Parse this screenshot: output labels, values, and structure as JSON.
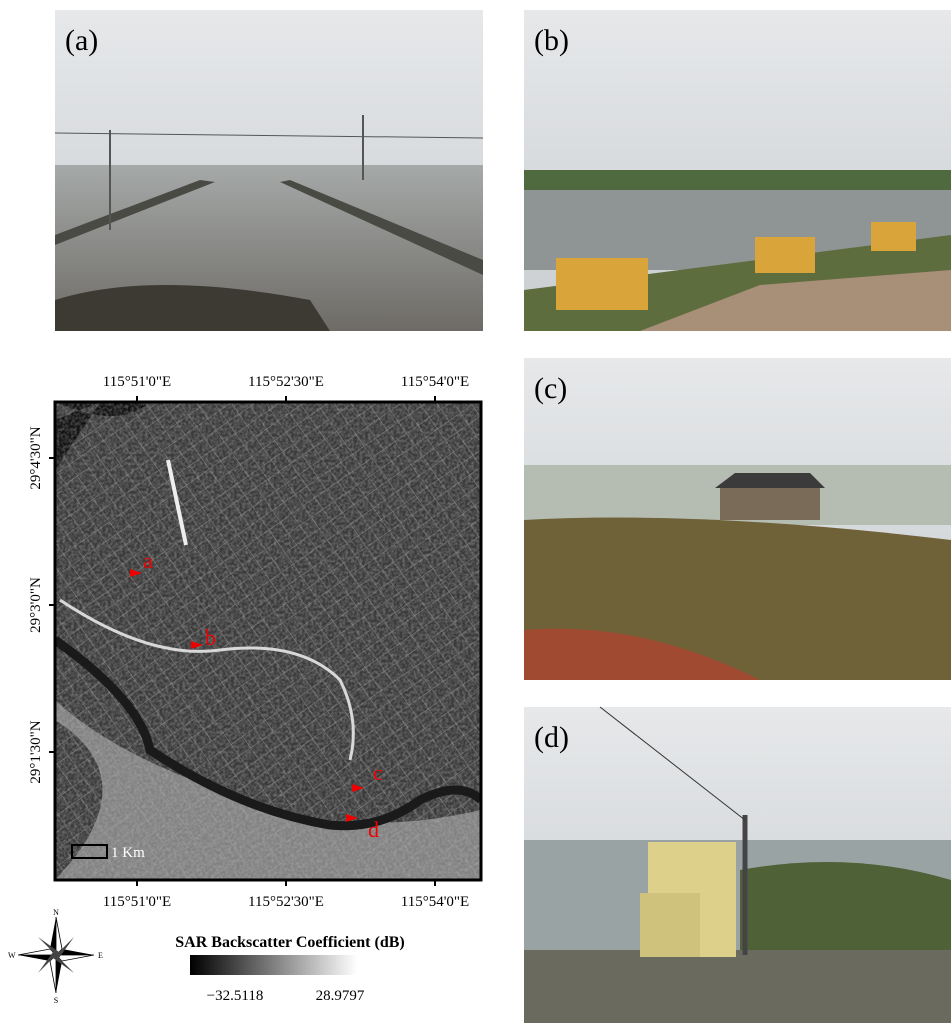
{
  "panels": {
    "a": "(a)",
    "b": "(b)",
    "c": "(c)",
    "d": "(d)"
  },
  "map": {
    "top_ticks": [
      "115°51'0\"E",
      "115°52'30\"E",
      "115°54'0\"E"
    ],
    "bottom_ticks": [
      "115°51'0\"E",
      "115°52'30\"E",
      "115°54'0\"E"
    ],
    "left_ticks": [
      "29°4'30\"N",
      "29°3'0\"N",
      "29°1'30\"N"
    ],
    "points": [
      "a",
      "b",
      "c",
      "d"
    ],
    "scale_bar": "1 Km"
  },
  "compass": {
    "n": "N",
    "s": "S",
    "e": "E",
    "w": "W"
  },
  "colorbar": {
    "title": "SAR Backscatter Coefficient (dB)",
    "min": "−32.5118",
    "max": "28.9797"
  }
}
